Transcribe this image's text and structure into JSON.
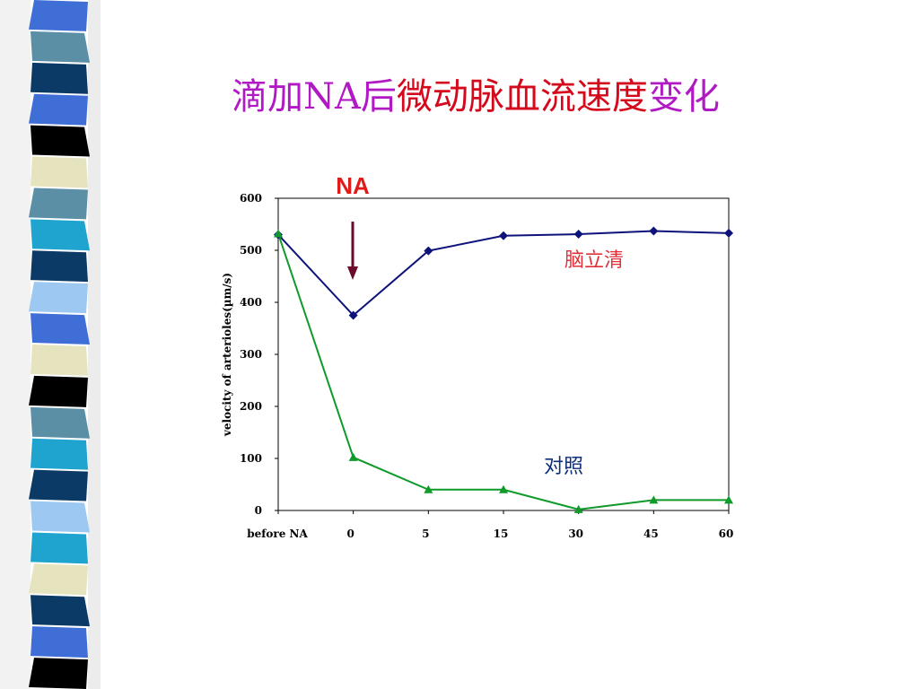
{
  "slide": {
    "title_part1": "滴加NA后",
    "title_part2": "微动脉血流速度",
    "title_part3": "变化",
    "title_color_purple": "#b019c4",
    "title_color_red": "#d40a1c"
  },
  "chart_data": {
    "type": "line",
    "categories": [
      "before NA",
      "0",
      "5",
      "15",
      "30",
      "45",
      "60"
    ],
    "ylabel": "velocity of arterioles(µm/s)",
    "ylim": [
      0,
      600
    ],
    "yticks": [
      "0",
      "100",
      "200",
      "300",
      "400",
      "500",
      "600"
    ],
    "grid": false,
    "annotation": "NA",
    "annotation_category": "0",
    "series": [
      {
        "name": "脑立清",
        "values": [
          530,
          375,
          499,
          528,
          531,
          537,
          533
        ],
        "color": "#0d137a",
        "label_color": "#e0303a",
        "marker": "diamond"
      },
      {
        "name": "对照",
        "values": [
          532,
          102,
          40,
          40,
          2,
          20,
          20
        ],
        "color": "#0f9a2a",
        "label_color": "#0d2f7a",
        "marker": "triangle"
      }
    ]
  }
}
